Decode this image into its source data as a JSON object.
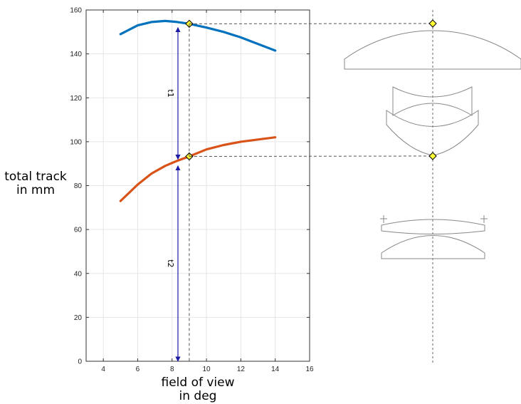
{
  "chart_data": {
    "type": "line",
    "title": "",
    "xlabel": [
      "field of view",
      "in deg"
    ],
    "ylabel": [
      "total track",
      "in mm"
    ],
    "xlim": [
      3,
      16
    ],
    "ylim": [
      0,
      160
    ],
    "xticks": [
      4,
      6,
      8,
      10,
      12,
      14,
      16
    ],
    "yticks": [
      0,
      20,
      40,
      60,
      80,
      100,
      120,
      140,
      160
    ],
    "grid": true,
    "series": [
      {
        "color": "#0072bd",
        "x": [
          5,
          6,
          6.8,
          7.6,
          8.2,
          9,
          10,
          11,
          12,
          13,
          14
        ],
        "y": [
          149,
          153,
          154.5,
          155,
          154.6,
          153.7,
          152,
          150,
          147.5,
          144.5,
          141.5
        ]
      },
      {
        "color": "#d95319",
        "x": [
          5,
          6,
          6.8,
          7.6,
          8.2,
          9,
          10,
          11,
          12,
          13,
          14
        ],
        "y": [
          73,
          80.5,
          85.5,
          89,
          91,
          93.3,
          96.5,
          98.5,
          100,
          101,
          102
        ]
      }
    ],
    "marker": {
      "x": 9,
      "points": [
        153.7,
        93.3
      ],
      "color": "#ffff33"
    },
    "annotations": [
      {
        "label": "t1",
        "from": 92,
        "to": 152
      },
      {
        "label": "t2",
        "from": 0,
        "to": 89
      }
    ]
  },
  "lens_diagram": {
    "stroke": "#888888",
    "marker_color": "#ffff33"
  }
}
